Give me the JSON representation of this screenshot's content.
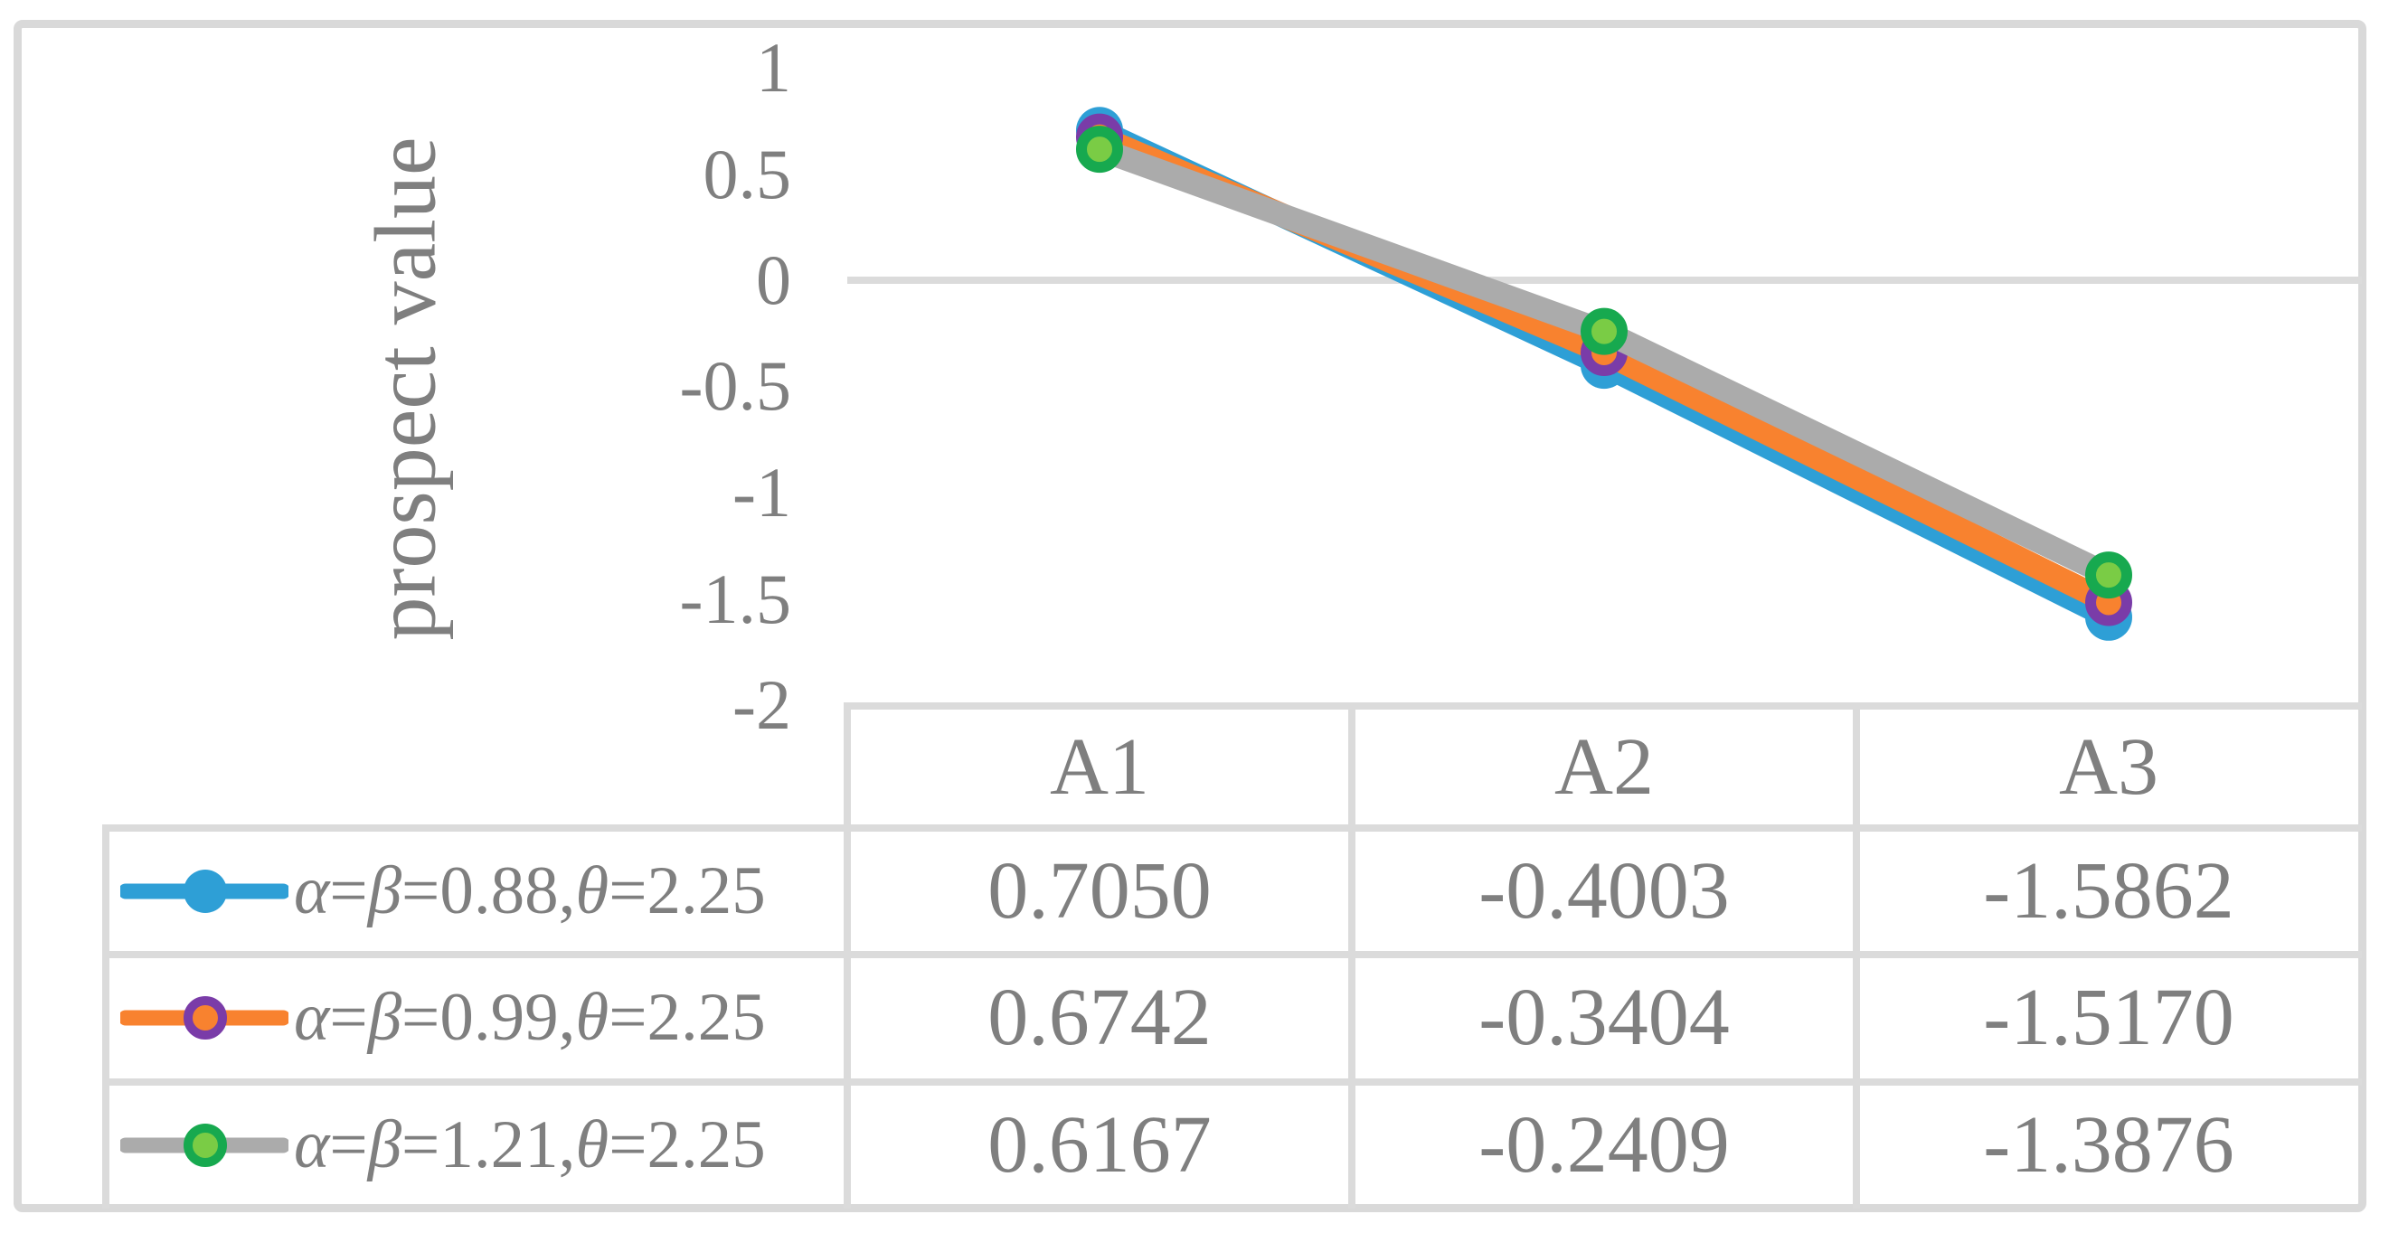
{
  "figure": {
    "background_color": "#ffffff",
    "frame_color": "#d9d9d9",
    "grid_color": "#dbdbdb",
    "text_color": "#7f7f7f"
  },
  "chart_data": {
    "type": "line",
    "title": "",
    "xlabel": "",
    "ylabel": "prospect value",
    "categories": [
      "A1",
      "A2",
      "A3"
    ],
    "ylim": [
      -2,
      1
    ],
    "grid": "zero-line-only",
    "legend_position": "data-table-left",
    "y_ticks": [
      {
        "value": 1,
        "label": "1"
      },
      {
        "value": 0.5,
        "label": "0.5"
      },
      {
        "value": 0,
        "label": "0"
      },
      {
        "value": -0.5,
        "label": "-0.5"
      },
      {
        "value": -1,
        "label": "-1"
      },
      {
        "value": -1.5,
        "label": "-1.5"
      },
      {
        "value": -2,
        "label": "-2"
      }
    ],
    "series": [
      {
        "name": "α=β=0.88,θ=2.25",
        "values": [
          0.705,
          -0.4003,
          -1.5862
        ],
        "line_color": "#2e9fd6",
        "marker_fill": "#2e9fd6",
        "marker_ring": "#2e9fd6",
        "marker_style": "solid-circle"
      },
      {
        "name": "α=β=0.99,θ=2.25",
        "values": [
          0.6742,
          -0.3404,
          -1.517
        ],
        "line_color": "#f8822f",
        "marker_fill": "#f8822f",
        "marker_ring": "#7a3ca8",
        "marker_style": "ringed-circle"
      },
      {
        "name": "α=β=1.21,θ=2.25",
        "values": [
          0.6167,
          -0.2409,
          -1.3876
        ],
        "line_color": "#ababab",
        "marker_fill": "#7acc45",
        "marker_ring": "#17a94f",
        "marker_style": "ringed-circle"
      }
    ]
  },
  "table": {
    "column_headers": [
      "A1",
      "A2",
      "A3"
    ],
    "rows": [
      {
        "legend": "α=β=0.88,θ=2.25",
        "cells": [
          "0.7050",
          "-0.4003",
          "-1.5862"
        ]
      },
      {
        "legend": "α=β=0.99,θ=2.25",
        "cells": [
          "0.6742",
          "-0.3404",
          "-1.5170"
        ]
      },
      {
        "legend": "α=β=1.21,θ=2.25",
        "cells": [
          "0.6167",
          "-0.2409",
          "-1.3876"
        ]
      }
    ]
  }
}
